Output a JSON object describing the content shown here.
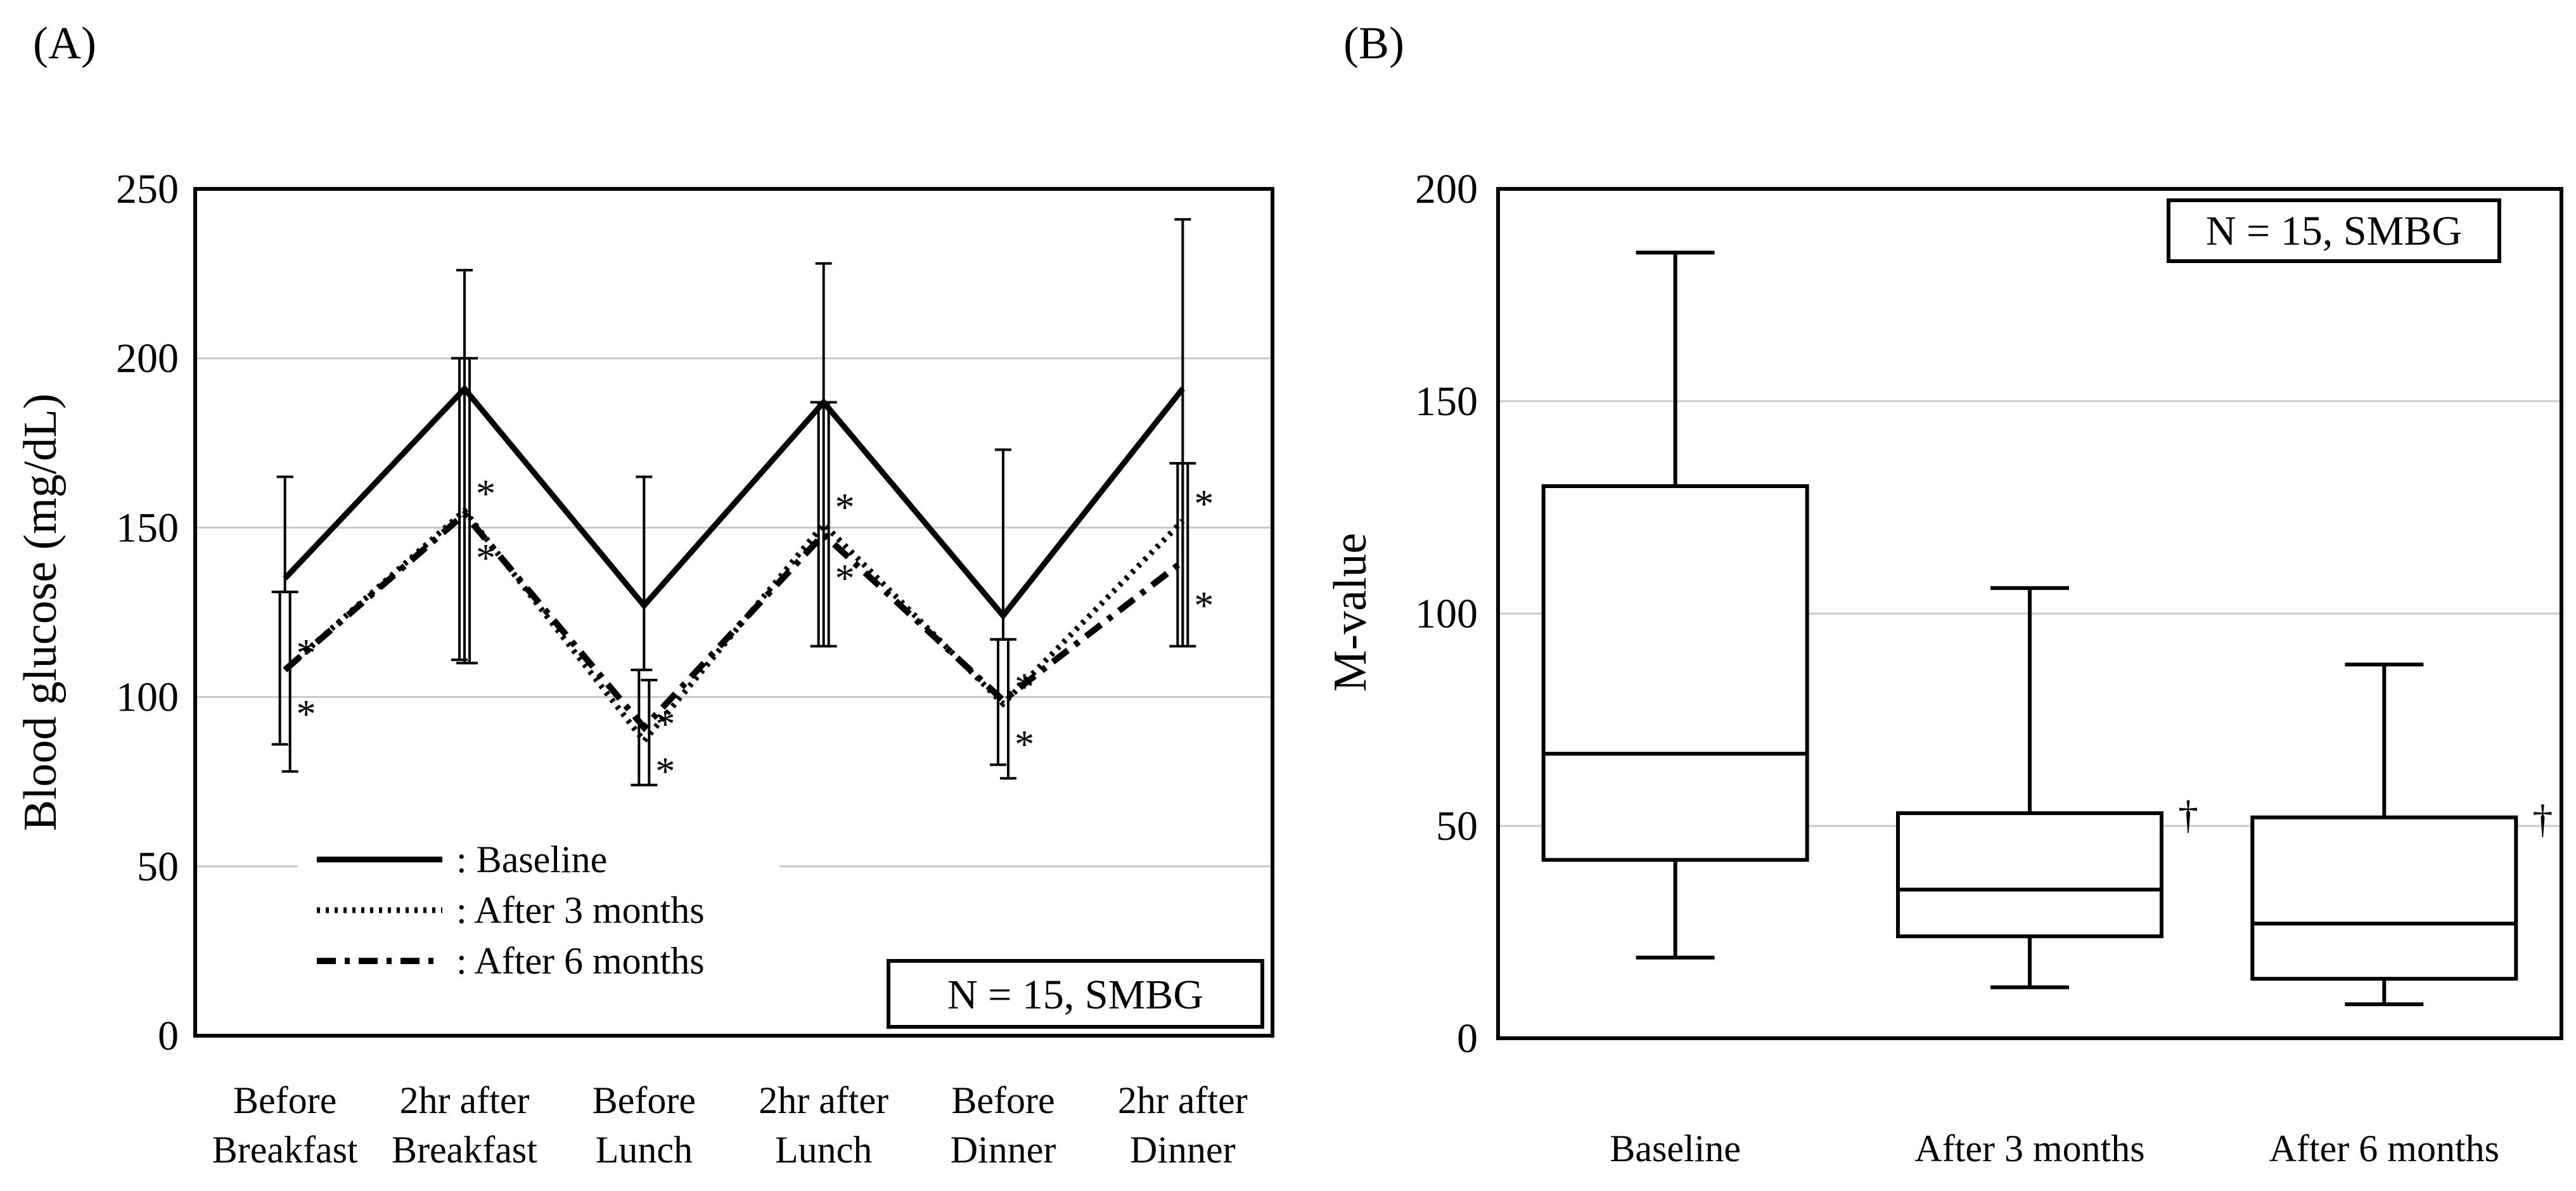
{
  "chart_data": [
    {
      "type": "line",
      "panel_label": "(A)",
      "ylabel": "Blood glucose (mg/dL)",
      "ylim": [
        0,
        250
      ],
      "yticks": [
        0,
        50,
        100,
        150,
        200,
        250
      ],
      "grid": "horizontal",
      "categories": [
        [
          "Before",
          "Breakfast"
        ],
        [
          "2hr after",
          "Breakfast"
        ],
        [
          "Before",
          "Lunch"
        ],
        [
          "2hr after",
          "Lunch"
        ],
        [
          "Before",
          "Dinner"
        ],
        [
          "2hr after",
          "Dinner"
        ]
      ],
      "annotation": "N = 15, SMBG",
      "legend_placement": "bottom-left",
      "significance_marker": "*",
      "series": [
        {
          "name": ": Baseline",
          "line_style": "solid",
          "values": [
            135,
            191,
            127,
            187,
            124,
            191
          ],
          "error_upper": [
            165,
            226,
            165,
            228,
            173,
            241
          ],
          "error_lower": [
            131,
            110,
            108,
            115,
            117,
            115
          ]
        },
        {
          "name": ": After 3 months",
          "line_style": "dotted",
          "values": [
            108,
            155,
            87,
            151,
            98,
            152
          ],
          "error_upper": [
            131,
            200,
            108,
            187,
            117,
            169
          ],
          "error_lower": [
            86,
            111,
            74,
            115,
            80,
            115
          ],
          "significant": [
            true,
            true,
            true,
            true,
            true,
            true
          ]
        },
        {
          "name": ": After 6 months",
          "line_style": "dashed",
          "values": [
            108,
            154,
            91,
            148,
            99,
            140
          ],
          "error_upper": [
            131,
            200,
            105,
            187,
            117,
            169
          ],
          "error_lower": [
            78,
            110,
            74,
            115,
            76,
            115
          ],
          "significant": [
            true,
            true,
            true,
            true,
            true,
            true
          ]
        }
      ]
    },
    {
      "type": "box",
      "panel_label": "(B)",
      "ylabel": "M-value",
      "ylim": [
        0,
        200
      ],
      "yticks": [
        0,
        50,
        100,
        150,
        200
      ],
      "grid": "horizontal",
      "categories": [
        "Baseline",
        "After 3 months",
        "After 6 months"
      ],
      "annotation": "N = 15, SMBG",
      "boxes": [
        {
          "min": 19,
          "q1": 42,
          "median": 67,
          "q3": 130,
          "max": 185,
          "marker": ""
        },
        {
          "min": 12,
          "q1": 24,
          "median": 35,
          "q3": 53,
          "max": 106,
          "marker": "†"
        },
        {
          "min": 8,
          "q1": 14,
          "median": 27,
          "q3": 52,
          "max": 88,
          "marker": "†"
        }
      ]
    }
  ]
}
